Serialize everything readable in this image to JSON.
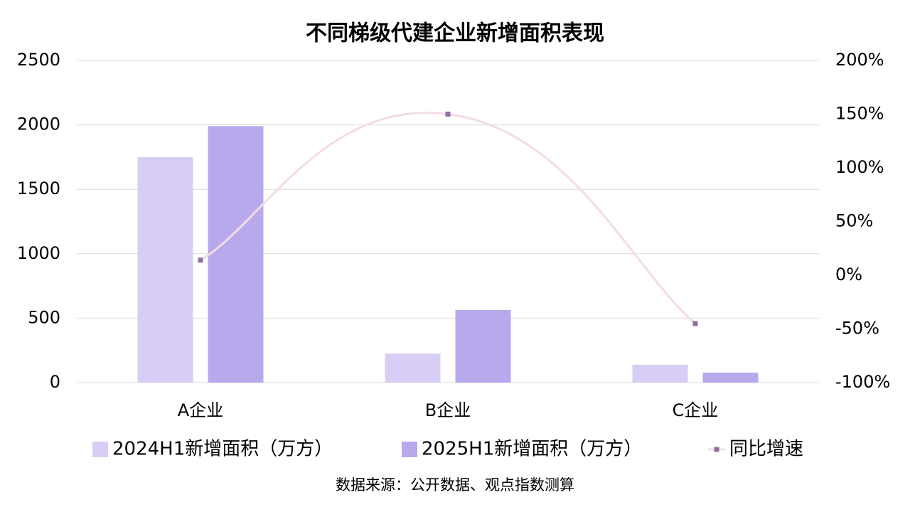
{
  "chart_data": {
    "type": "bar",
    "title": "不同梯级代建企业新增面积表现",
    "categories": [
      "A企业",
      "B企业",
      "C企业"
    ],
    "series": [
      {
        "name": "2024H1新增面积（万方）",
        "color": "#d8cdf4",
        "values": [
          1750,
          225,
          138
        ]
      },
      {
        "name": "2025H1新增面积（万方）",
        "color": "#b8a8ec",
        "values": [
          1990,
          563,
          77
        ]
      },
      {
        "name": "同比增速",
        "type": "line",
        "axis": "y2",
        "color": "#f4dce4",
        "marker_color": "#8e6fa0",
        "values": [
          14,
          150,
          -45
        ]
      }
    ],
    "ylim": [
      0,
      2500
    ],
    "yticks": [
      0,
      500,
      1000,
      1500,
      2000,
      2500
    ],
    "y2lim": [
      -100,
      200
    ],
    "y2ticks": [
      {
        "value": -100,
        "label": "-100%"
      },
      {
        "value": -50,
        "label": "-50%"
      },
      {
        "value": 0,
        "label": "0%"
      },
      {
        "value": 50,
        "label": "50%"
      },
      {
        "value": 100,
        "label": "100%"
      },
      {
        "value": 150,
        "label": "150%"
      },
      {
        "value": 200,
        "label": "200%"
      }
    ],
    "grid": true,
    "legend": "bottom",
    "source": "数据来源：公开数据、观点指数测算"
  }
}
